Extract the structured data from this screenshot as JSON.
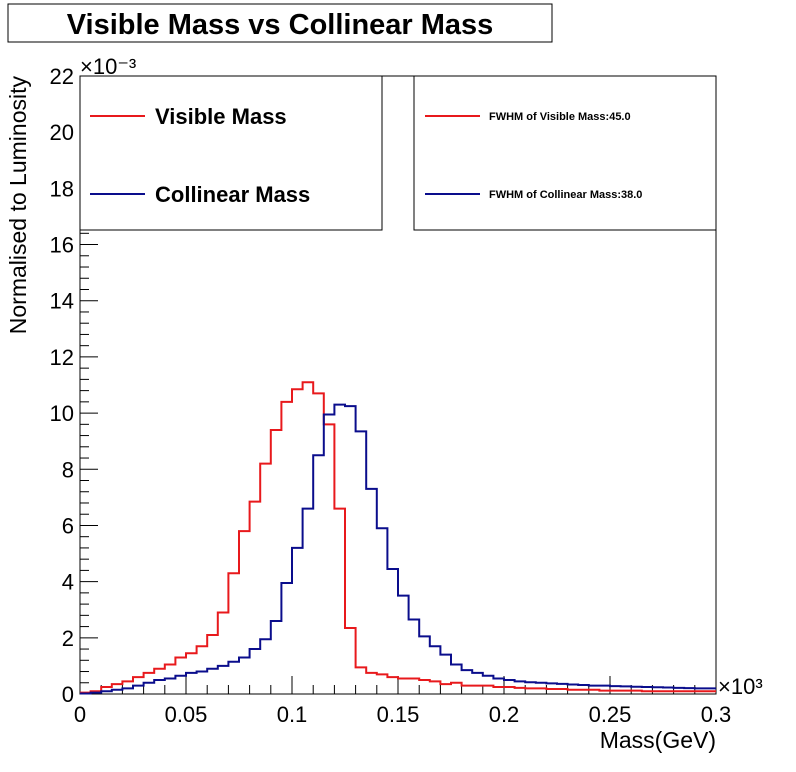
{
  "chart_data": {
    "type": "line",
    "title": "Visible Mass vs Collinear Mass",
    "xlabel": "Mass(GeV)",
    "ylabel": "Normalised to Luminosity",
    "x_multiplier": "×10³",
    "y_multiplier": "×10⁻³",
    "xlim": [
      0,
      0.3
    ],
    "ylim": [
      0,
      22
    ],
    "x_ticks": [
      "0",
      "0.05",
      "0.1",
      "0.15",
      "0.2",
      "0.25",
      "0.3"
    ],
    "y_ticks": [
      "0",
      "2",
      "4",
      "6",
      "8",
      "10",
      "12",
      "14",
      "16",
      "18",
      "20",
      "22"
    ],
    "grid": false,
    "bin_width": 0.005,
    "series": [
      {
        "name": "Visible Mass",
        "color": "#e8191c",
        "values": [
          0.05,
          0.1,
          0.25,
          0.35,
          0.45,
          0.6,
          0.75,
          0.9,
          1.05,
          1.3,
          1.45,
          1.7,
          2.1,
          2.9,
          4.3,
          5.8,
          6.85,
          8.2,
          9.4,
          10.4,
          10.85,
          11.1,
          10.7,
          9.6,
          6.6,
          2.35,
          0.95,
          0.75,
          0.7,
          0.6,
          0.55,
          0.55,
          0.5,
          0.45,
          0.35,
          0.4,
          0.3,
          0.3,
          0.3,
          0.25,
          0.25,
          0.22,
          0.2,
          0.2,
          0.18,
          0.18,
          0.15,
          0.15,
          0.15,
          0.12,
          0.12,
          0.12,
          0.12,
          0.1,
          0.1,
          0.1,
          0.1,
          0.1,
          0.1,
          0.1
        ]
      },
      {
        "name": "Collinear Mass",
        "color": "#0a0d8c",
        "values": [
          0.02,
          0.05,
          0.1,
          0.15,
          0.2,
          0.3,
          0.4,
          0.5,
          0.55,
          0.65,
          0.75,
          0.8,
          0.9,
          1.0,
          1.15,
          1.3,
          1.6,
          1.95,
          2.6,
          3.95,
          5.2,
          6.6,
          8.5,
          9.95,
          10.3,
          10.25,
          9.35,
          7.3,
          5.9,
          4.45,
          3.5,
          2.65,
          2.05,
          1.7,
          1.4,
          1.05,
          0.85,
          0.75,
          0.65,
          0.55,
          0.5,
          0.45,
          0.42,
          0.4,
          0.38,
          0.36,
          0.34,
          0.32,
          0.3,
          0.3,
          0.28,
          0.27,
          0.26,
          0.25,
          0.24,
          0.23,
          0.22,
          0.21,
          0.2,
          0.2
        ]
      }
    ],
    "legends": [
      {
        "entries": [
          {
            "label": "Visible Mass",
            "color": "#e8191c"
          },
          {
            "label": "Collinear Mass",
            "color": "#0a0d8c"
          }
        ]
      },
      {
        "entries": [
          {
            "label": "FWHM of Visible Mass:45.0",
            "color": "#e8191c"
          },
          {
            "label": "FWHM of Collinear Mass:38.0",
            "color": "#0a0d8c"
          }
        ]
      }
    ]
  }
}
